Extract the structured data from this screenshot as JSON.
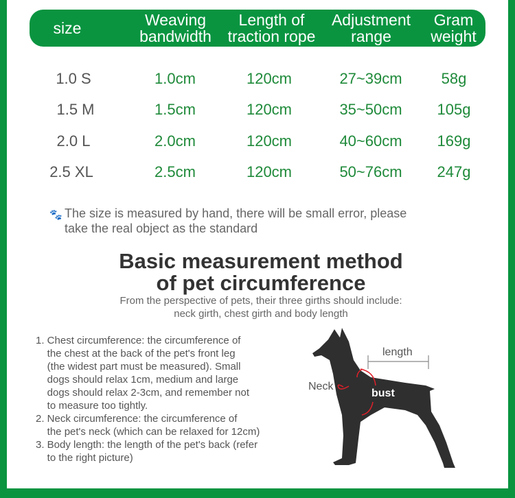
{
  "table": {
    "headers": [
      "size",
      "Weaving\nbandwidth",
      "Length of\ntraction rope",
      "Adjustment\nrange",
      "Gram\nweight"
    ],
    "rows": [
      {
        "size": "1.0 S",
        "bandwidth": "1.0cm",
        "rope": "120cm",
        "range": "27~39cm",
        "weight": "58g"
      },
      {
        "size": "1.5 M",
        "bandwidth": "1.5cm",
        "rope": "120cm",
        "range": "35~50cm",
        "weight": "105g"
      },
      {
        "size": "2.0 L",
        "bandwidth": "2.0cm",
        "rope": "120cm",
        "range": "40~60cm",
        "weight": "169g"
      },
      {
        "size": "2.5 XL",
        "bandwidth": "2.5cm",
        "rope": "120cm",
        "range": "50~76cm",
        "weight": "247g"
      }
    ]
  },
  "note": {
    "icon": "paw-icon",
    "line1": "The size is measured by hand, there will be small error, please",
    "line2": "take the real object as the standard"
  },
  "method": {
    "title1": "Basic measurement method",
    "title2": "of pet circumference",
    "sub1": "From the perspective of pets, their three girths should include:",
    "sub2": "neck girth, chest girth and body length",
    "lines": [
      "1. Chest circumference: the circumference of",
      "    the chest at the back of the pet's front leg",
      "    (the widest part must be measured). Small",
      "    dogs should relax 1cm, medium and large",
      "    dogs should relax 2-3cm, and remember not",
      "    to measure too tightly.",
      "2. Neck circumference: the circumference of",
      "    the pet's neck (which can be relaxed for 12cm)",
      "3. Body length: the length of the pet's back (refer",
      "    to the right picture)"
    ]
  },
  "diagram": {
    "length": "length",
    "neck": "Neck",
    "bust": "bust"
  },
  "colors": {
    "green": "#0a9440",
    "text_green": "#1f8a3a",
    "arrow_red": "#e0202a"
  }
}
